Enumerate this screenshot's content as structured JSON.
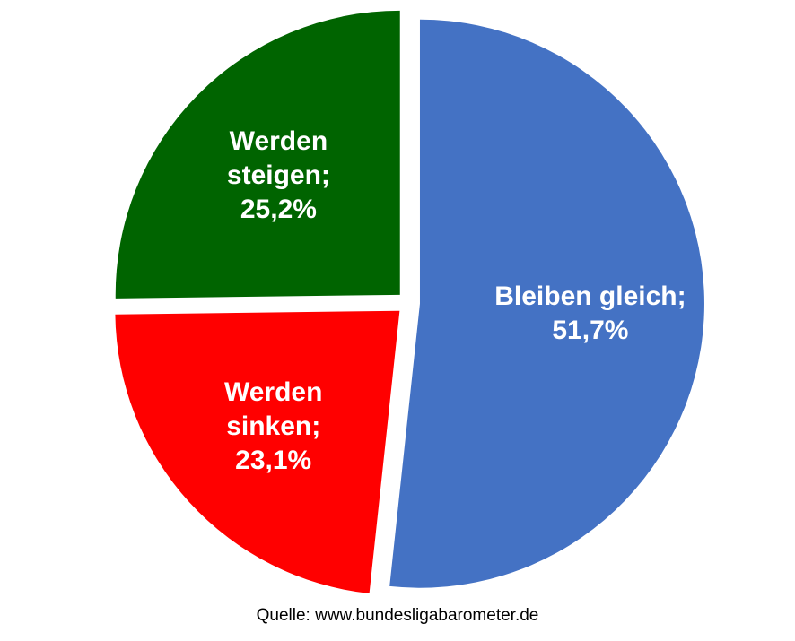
{
  "chart_data": {
    "type": "pie",
    "slices": [
      {
        "label_lines": [
          "Bleiben gleich;",
          "51,7%"
        ],
        "category": "Bleiben gleich",
        "value": 51.7,
        "color": "#4472C4"
      },
      {
        "label_lines": [
          "Werden",
          "sinken;",
          "23,1%"
        ],
        "category": "Werden sinken",
        "value": 23.1,
        "color": "#FF0000"
      },
      {
        "label_lines": [
          "Werden",
          "steigen;",
          "25,2%"
        ],
        "category": "Werden steigen",
        "value": 25.2,
        "color": "#006400"
      }
    ],
    "start_angle_deg": 0,
    "direction": "clockwise",
    "exploded": true
  },
  "source": {
    "text": "Quelle: www.bundesligabarometer.de"
  }
}
